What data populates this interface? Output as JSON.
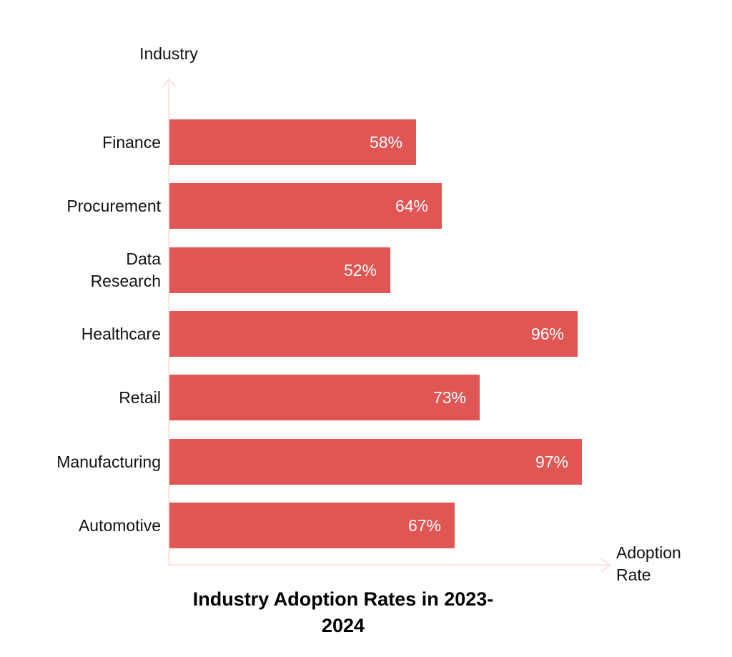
{
  "chart": {
    "title": "Industry Adoption Rates in 2023-2024",
    "title_display": "Industry Adoption Rates in 2023-\n2024",
    "y_axis_label": "Industry",
    "x_axis_label_display": "Adoption\nRate"
  },
  "colors": {
    "bar": "#e05654",
    "axis": "#fbe5e2",
    "value_text": "#ffffff",
    "category_text": "#111111",
    "background": "#ffffff"
  },
  "chart_data": {
    "type": "bar",
    "orientation": "horizontal",
    "title": "Industry Adoption Rates in 2023-2024",
    "xlabel": "Adoption Rate",
    "ylabel": "Industry",
    "categories": [
      "Finance",
      "Procurement",
      "Data Research",
      "Healthcare",
      "Retail",
      "Manufacturing",
      "Automotive"
    ],
    "categories_display": [
      "Finance",
      "Procurement",
      "Data\nResearch",
      "Healthcare",
      "Retail",
      "Manufacturing",
      "Automotive"
    ],
    "values": [
      58,
      64,
      52,
      96,
      73,
      97,
      67
    ],
    "value_labels": [
      "58%",
      "64%",
      "52%",
      "96%",
      "73%",
      "97%",
      "67%"
    ],
    "unit": "%",
    "xlim": [
      0,
      100
    ],
    "grid": false,
    "legend": false,
    "bar_color": "#e05654"
  }
}
